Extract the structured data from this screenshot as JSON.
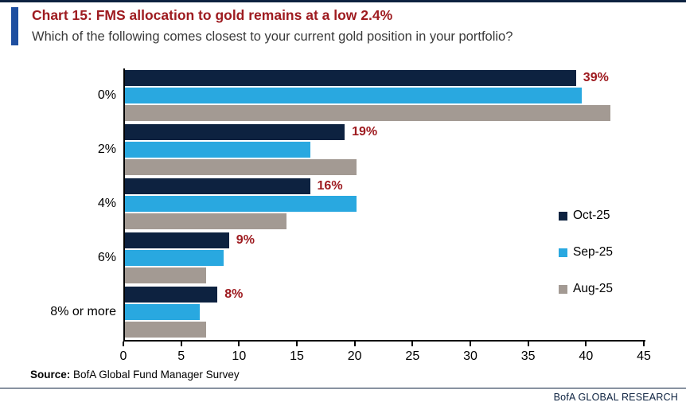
{
  "header": {
    "title": "Chart 15: FMS allocation to gold remains at a low 2.4%",
    "subtitle": "Which of the following comes closest to your current gold position in your portfolio?"
  },
  "chart_data": {
    "type": "bar",
    "orientation": "horizontal",
    "title": "Chart 15: FMS allocation to gold remains at a low 2.4%",
    "subtitle": "Which of the following comes closest to your current gold position in your portfolio?",
    "categories": [
      "0%",
      "2%",
      "4%",
      "6%",
      "8% or more"
    ],
    "series": [
      {
        "name": "Oct-25",
        "color": "#0d2240",
        "values": [
          39,
          19,
          16,
          9,
          8
        ]
      },
      {
        "name": "Sep-25",
        "color": "#29a8e0",
        "values": [
          39.5,
          16,
          20,
          8.5,
          6.5
        ]
      },
      {
        "name": "Aug-25",
        "color": "#a39a93",
        "values": [
          42,
          20,
          14,
          7,
          7
        ]
      }
    ],
    "data_labels": {
      "series": "Oct-25",
      "values": [
        "39%",
        "19%",
        "16%",
        "9%",
        "8%"
      ],
      "color": "#9e1b20"
    },
    "x_axis": {
      "min": 0,
      "max": 45,
      "ticks": [
        0,
        5,
        10,
        15,
        20,
        25,
        30,
        35,
        40,
        45
      ]
    },
    "legend": [
      "Oct-25",
      "Sep-25",
      "Aug-25"
    ],
    "legend_position": "right-inside",
    "grid": false
  },
  "footer": {
    "source_label": "Source:",
    "source_text": " BofA Global Fund Manager Survey",
    "branding": "BofA GLOBAL RESEARCH"
  },
  "colors": {
    "top_rule": "#0d2240",
    "accent_bar": "#1e4fa0",
    "title": "#9e1b20",
    "brand_rule": "#0d2240",
    "brand_text": "#0d2240"
  }
}
